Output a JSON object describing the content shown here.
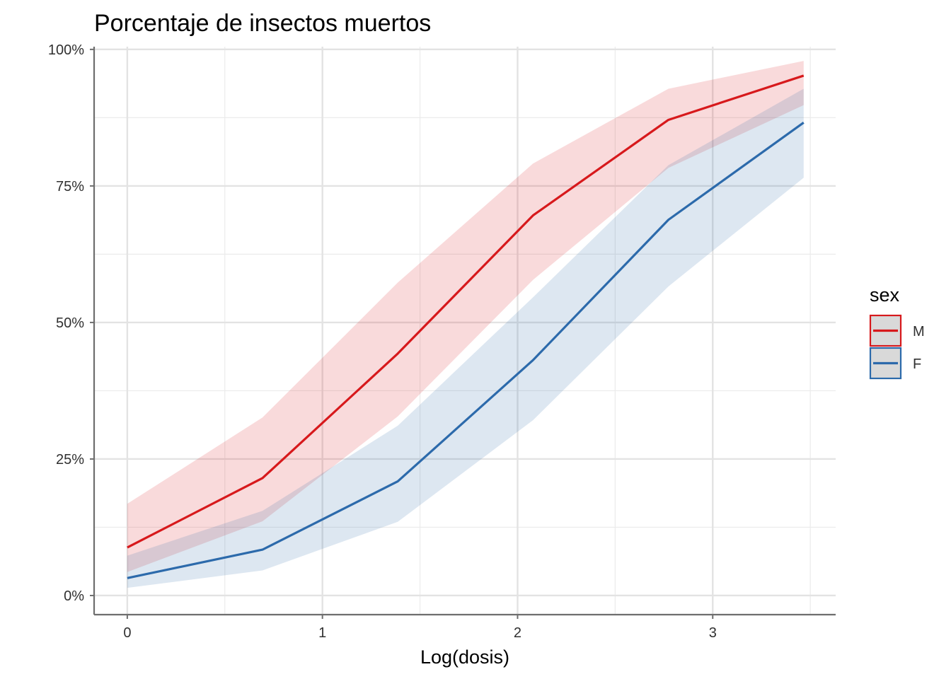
{
  "chart_data": {
    "type": "line",
    "title": "Porcentaje de insectos muertos",
    "xlabel": "Log(dosis)",
    "ylabel": "",
    "xlim": [
      -0.17,
      3.63
    ],
    "ylim": [
      -0.035,
      1.005
    ],
    "x_ticks": [
      0,
      1,
      2,
      3
    ],
    "x_tick_labels": [
      "0",
      "1",
      "2",
      "3"
    ],
    "y_ticks": [
      0,
      0.25,
      0.5,
      0.75,
      1.0
    ],
    "y_tick_labels": [
      "0%",
      "25%",
      "50%",
      "75%",
      "100%"
    ],
    "x_minor": [
      0.5,
      1.5,
      2.5,
      3.5
    ],
    "y_minor": [
      0.125,
      0.375,
      0.625,
      0.875
    ],
    "grid": true,
    "legend": {
      "title": "sex",
      "position": "right"
    },
    "x": [
      0,
      0.693,
      1.386,
      2.079,
      2.773,
      3.466
    ],
    "series": [
      {
        "name": "M",
        "color": "#d7191c",
        "values": [
          0.088,
          0.215,
          0.443,
          0.696,
          0.871,
          0.952
        ],
        "lower": [
          0.043,
          0.136,
          0.328,
          0.578,
          0.783,
          0.898
        ],
        "upper": [
          0.168,
          0.326,
          0.573,
          0.791,
          0.928,
          0.979
        ]
      },
      {
        "name": "F",
        "color": "#2c6aab",
        "values": [
          0.032,
          0.084,
          0.209,
          0.431,
          0.688,
          0.866
        ],
        "lower": [
          0.014,
          0.046,
          0.135,
          0.321,
          0.566,
          0.765
        ],
        "upper": [
          0.073,
          0.155,
          0.311,
          0.546,
          0.788,
          0.928
        ]
      }
    ]
  }
}
